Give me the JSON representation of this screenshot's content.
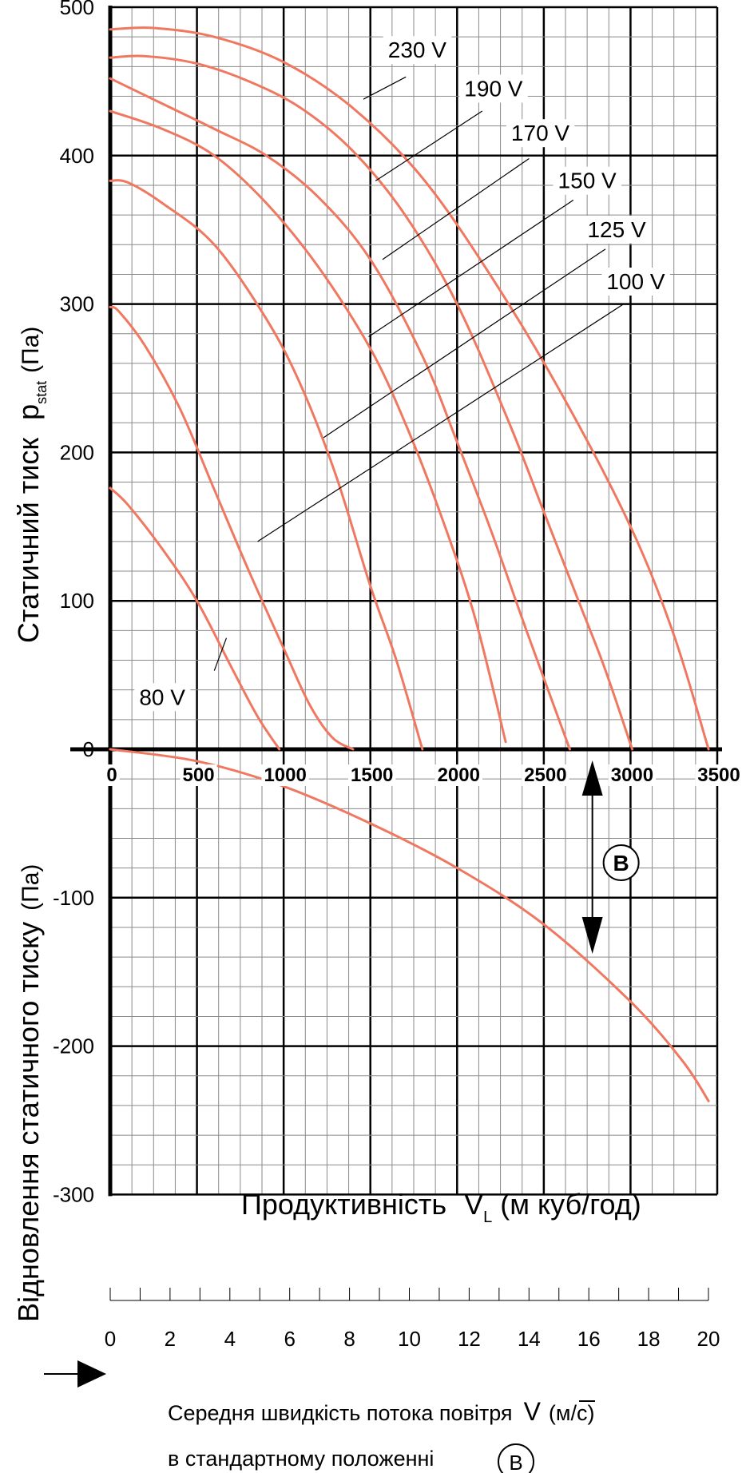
{
  "chart_data": {
    "type": "line",
    "x_unit_label": "Продуктивність",
    "x_symbol": "V",
    "x_symbol_sub": "L",
    "x_unit": "(м куб/год)",
    "y_upper_label": "Статичний тиск",
    "y_upper_symbol": "p",
    "y_upper_symbol_sub": "stat",
    "y_upper_unit": "(Па)",
    "y_lower_label": "Відновлення статичного тиску",
    "y_lower_unit": "(Па)",
    "xlim": [
      0,
      3500
    ],
    "ylim": [
      -300,
      500
    ],
    "x_ticks": [
      "0",
      "500",
      "1000",
      "1500",
      "2000",
      "2500",
      "3000",
      "3500"
    ],
    "y_ticks": [
      "500",
      "400",
      "300",
      "200",
      "100",
      "0",
      "-100",
      "-200",
      "-300"
    ],
    "grid": true,
    "series": [
      {
        "name": "230 V",
        "x": [
          0,
          250,
          600,
          1000,
          1400,
          1800,
          2200,
          2600,
          3000,
          3250,
          3450
        ],
        "y": [
          485,
          486,
          480,
          463,
          432,
          385,
          318,
          240,
          150,
          77,
          0
        ]
      },
      {
        "name": "190 V",
        "x": [
          0,
          200,
          500,
          800,
          1100,
          1400,
          1700,
          2000,
          2300,
          2500,
          2700,
          2850,
          3010
        ],
        "y": [
          466,
          467,
          462,
          450,
          432,
          403,
          360,
          300,
          220,
          160,
          100,
          55,
          0
        ]
      },
      {
        "name": "170 V",
        "x": [
          0,
          300,
          600,
          900,
          1200,
          1500,
          1800,
          2000,
          2200,
          2400,
          2650
        ],
        "y": [
          452,
          435,
          418,
          400,
          372,
          330,
          265,
          207,
          146,
          80,
          0
        ]
      },
      {
        "name": "150 V",
        "x": [
          0,
          300,
          600,
          900,
          1200,
          1500,
          1700,
          1900,
          2100,
          2280
        ],
        "y": [
          430,
          418,
          400,
          368,
          325,
          270,
          220,
          160,
          90,
          5
        ]
      },
      {
        "name": "125 V",
        "x": [
          0,
          100,
          300,
          600,
          900,
          1100,
          1300,
          1500,
          1650,
          1800
        ],
        "y": [
          383,
          382,
          368,
          340,
          290,
          245,
          185,
          110,
          60,
          0
        ]
      },
      {
        "name": "100 V",
        "x": [
          0,
          50,
          200,
          400,
          600,
          800,
          1000,
          1150,
          1280,
          1400
        ],
        "y": [
          298,
          295,
          272,
          230,
          175,
          120,
          68,
          30,
          8,
          0
        ]
      },
      {
        "name": "80 V",
        "x": [
          0,
          100,
          300,
          500,
          700,
          850,
          975
        ],
        "y": [
          176,
          165,
          135,
          100,
          55,
          22,
          0
        ]
      },
      {
        "name": "B",
        "x": [
          0,
          500,
          1000,
          1500,
          2000,
          2500,
          3000,
          3300,
          3450
        ],
        "y": [
          0,
          -8,
          -25,
          -50,
          -80,
          -118,
          -170,
          -210,
          -237
        ]
      }
    ],
    "label_leaders": [
      {
        "name": "230 V",
        "label_x": 1770,
        "label_y": 466,
        "line_from": [
          1705,
          453
        ],
        "line_to": [
          1460,
          438
        ]
      },
      {
        "name": "190 V",
        "label_x": 2210,
        "label_y": 440,
        "line_from": [
          2145,
          430
        ],
        "line_to": [
          1530,
          383
        ]
      },
      {
        "name": "170 V",
        "label_x": 2480,
        "label_y": 410,
        "line_from": [
          2415,
          398
        ],
        "line_to": [
          1570,
          330
        ]
      },
      {
        "name": "150 V",
        "label_x": 2750,
        "label_y": 378,
        "line_from": [
          2670,
          370
        ],
        "line_to": [
          1490,
          278
        ]
      },
      {
        "name": "125 V",
        "label_x": 2920,
        "label_y": 345,
        "line_from": [
          2855,
          337
        ],
        "line_to": [
          1230,
          210
        ]
      },
      {
        "name": "100 V",
        "label_x": 3030,
        "label_y": 310,
        "line_from": [
          2960,
          300
        ],
        "line_to": [
          850,
          140
        ]
      },
      {
        "name": "80 V",
        "label_x": 300,
        "label_y": 30,
        "line_from": [
          600,
          53
        ],
        "line_to": [
          670,
          75
        ]
      }
    ],
    "marker_B": {
      "label": "B",
      "x": 2780
    },
    "velocity_axis": {
      "ticks": [
        "0",
        "2",
        "4",
        "6",
        "8",
        "10",
        "12",
        "14",
        "16",
        "18",
        "20"
      ],
      "max": 20
    },
    "colors": {
      "curve": "#f07860",
      "grid_major": "#000000",
      "grid_minor": "#8a8a8a"
    }
  },
  "legend_note": {
    "line1": "Середня швидкість потока повітря",
    "symbol": "V",
    "unit": "(м/с)",
    "line2": "в стандартному положенні",
    "circle_label": "B"
  }
}
